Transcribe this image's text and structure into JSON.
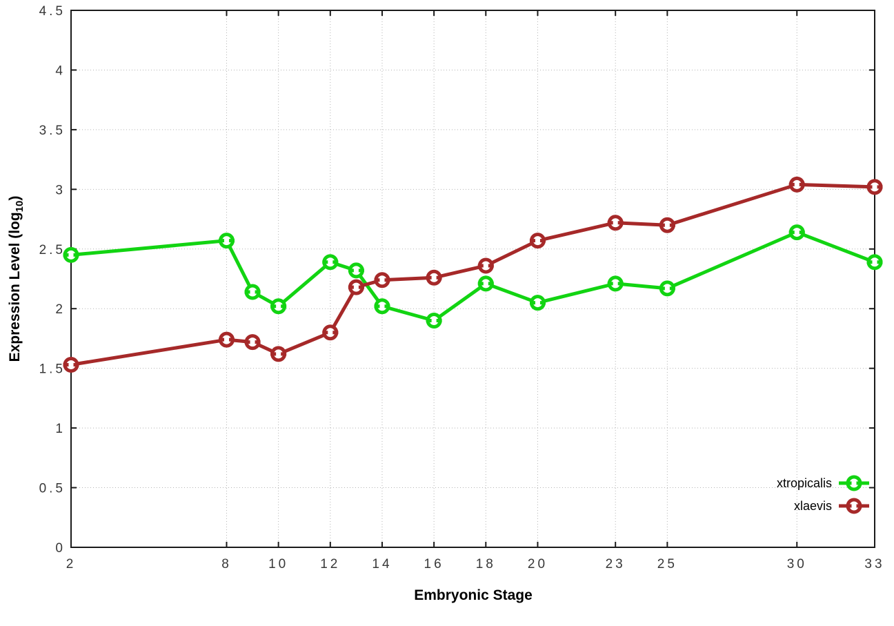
{
  "chart_data": {
    "type": "line",
    "title": "",
    "xlabel": "Embryonic Stage",
    "ylabel": "Expression Level (log10)",
    "ylabel_parts": {
      "main": "Expression Level (log",
      "sub": "10",
      "close": ")"
    },
    "x": [
      2,
      8,
      9,
      10,
      12,
      13,
      14,
      16,
      18,
      20,
      23,
      25,
      30,
      33
    ],
    "series": [
      {
        "name": "xtropicalis",
        "color": "#12d412",
        "marker": "open-circle",
        "values": [
          2.45,
          2.57,
          2.14,
          2.02,
          2.39,
          2.32,
          2.02,
          1.9,
          2.21,
          2.05,
          2.21,
          2.17,
          2.64,
          2.39
        ]
      },
      {
        "name": "xlaevis",
        "color": "#a62929",
        "marker": "open-circle",
        "values": [
          1.53,
          1.74,
          1.72,
          1.62,
          1.8,
          2.18,
          2.24,
          2.26,
          2.36,
          2.57,
          2.72,
          2.7,
          3.04,
          3.02
        ]
      }
    ],
    "xlim": [
      2,
      33
    ],
    "ylim": [
      0,
      4.5
    ],
    "xticks": {
      "values": [
        2,
        8,
        10,
        12,
        14,
        16,
        18,
        20,
        23,
        25,
        30,
        33
      ],
      "labels": [
        "2",
        "8",
        "10",
        "12",
        "14",
        "16",
        "18",
        "20",
        "23",
        "25",
        "30",
        "33"
      ]
    },
    "yticks": {
      "values": [
        0,
        0.5,
        1,
        1.5,
        2,
        2.5,
        3,
        3.5,
        4,
        4.5
      ],
      "labels": [
        "0",
        "0.5",
        "1",
        "1.5",
        "2",
        "2.5",
        "3",
        "3.5",
        "4",
        "4.5"
      ]
    },
    "grid": true,
    "legend": {
      "position": "bottom-right",
      "entries": [
        "xtropicalis",
        "xlaevis"
      ]
    },
    "colors": {
      "background": "#ffffff",
      "axis": "#1a1a1a",
      "grid": "#b3b3b3",
      "tick_text": "#383838"
    }
  }
}
